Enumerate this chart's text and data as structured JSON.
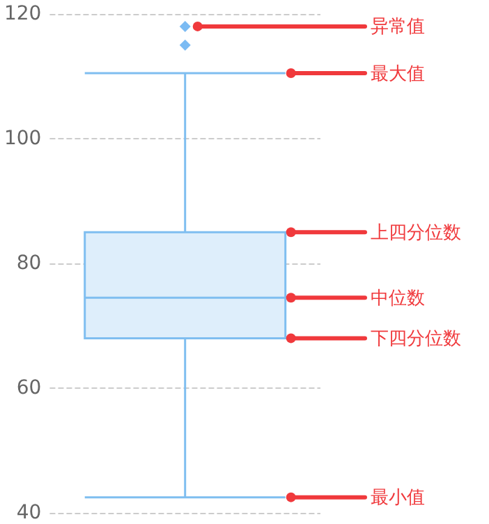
{
  "chart_data": {
    "type": "box",
    "categories": [
      null
    ],
    "boxes": [
      {
        "low": 42.5,
        "q1": 68,
        "median": 74.5,
        "q3": 85,
        "high": 110.5,
        "outliers": [
          118,
          115
        ]
      }
    ],
    "color": "#7fbef0",
    "ylim": [
      40,
      120
    ],
    "yticks": [
      40,
      60,
      80,
      100,
      120
    ],
    "grid": "y",
    "tick_labels": "y",
    "annotations": [
      "异常值",
      "最大值",
      "上四分位数",
      "中位数",
      "下四分位数",
      "最小值"
    ]
  }
}
